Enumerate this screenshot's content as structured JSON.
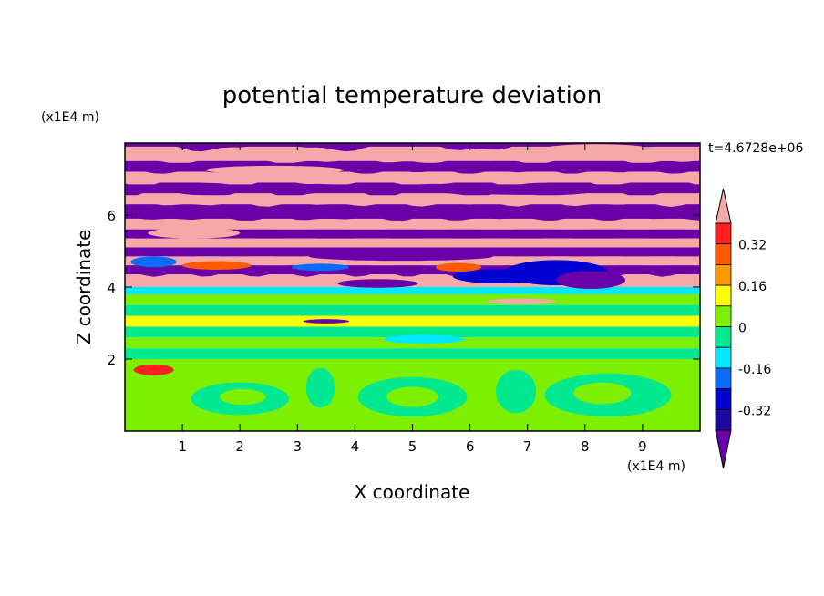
{
  "chart_data": {
    "type": "heatmap",
    "title": "potential temperature deviation",
    "xlabel": "X coordinate",
    "ylabel": "Z coordinate",
    "x_unit": "(x1E4 m)",
    "y_unit": "(x1E4 m)",
    "time_label": "t=4.6728e+06",
    "xlim": [
      0,
      10
    ],
    "ylim": [
      0,
      8
    ],
    "xticks": [
      1,
      2,
      3,
      4,
      5,
      6,
      7,
      8,
      9
    ],
    "yticks": [
      2,
      4,
      6
    ],
    "colorbar": {
      "levels": [
        -0.4,
        -0.32,
        -0.24,
        -0.16,
        -0.08,
        0,
        0.08,
        0.16,
        0.24,
        0.32,
        0.4
      ],
      "labels": [
        "0.32",
        "0.16",
        "0",
        "-0.16",
        "-0.32"
      ],
      "label_values": [
        0.32,
        0.16,
        0,
        -0.16,
        -0.32
      ],
      "colors": [
        "#6a00a8",
        "#1a0aa0",
        "#0000d0",
        "#0a6cff",
        "#00e8ff",
        "#00e890",
        "#7cf000",
        "#ffff00",
        "#ff9800",
        "#ff5a00",
        "#ff2020",
        "#f5a8a8"
      ],
      "range": [
        -0.48,
        0.48
      ]
    },
    "bands": [
      {
        "y0": 7.9,
        "y1": 8.0,
        "value": -0.45
      },
      {
        "y0": 7.5,
        "y1": 7.9,
        "value": 0.45
      },
      {
        "y0": 7.2,
        "y1": 7.5,
        "value": -0.45
      },
      {
        "y0": 6.9,
        "y1": 7.2,
        "value": 0.45
      },
      {
        "y0": 6.6,
        "y1": 6.9,
        "value": -0.45
      },
      {
        "y0": 6.3,
        "y1": 6.6,
        "value": 0.45
      },
      {
        "y0": 5.9,
        "y1": 6.3,
        "value": -0.45
      },
      {
        "y0": 5.6,
        "y1": 5.9,
        "value": 0.45
      },
      {
        "y0": 5.35,
        "y1": 5.6,
        "value": -0.45
      },
      {
        "y0": 5.1,
        "y1": 5.35,
        "value": 0.45
      },
      {
        "y0": 4.85,
        "y1": 5.1,
        "value": -0.45
      },
      {
        "y0": 4.6,
        "y1": 4.85,
        "value": 0.45
      },
      {
        "y0": 4.35,
        "y1": 4.6,
        "value": -0.45
      },
      {
        "y0": 4.0,
        "y1": 4.35,
        "value": 0.45
      },
      {
        "y0": 3.8,
        "y1": 4.0,
        "value": -0.12
      },
      {
        "y0": 3.5,
        "y1": 3.8,
        "value": 0.06
      },
      {
        "y0": 3.2,
        "y1": 3.5,
        "value": -0.02
      },
      {
        "y0": 2.9,
        "y1": 3.2,
        "value": 0.1
      },
      {
        "y0": 2.6,
        "y1": 2.9,
        "value": -0.02
      },
      {
        "y0": 2.3,
        "y1": 2.6,
        "value": 0.08
      },
      {
        "y0": 2.0,
        "y1": 2.3,
        "value": -0.02
      },
      {
        "y0": 0.0,
        "y1": 2.0,
        "value": 0.05
      }
    ],
    "blobs": [
      {
        "cx": 8.2,
        "cy": 7.85,
        "rx": 0.9,
        "ry": 0.12,
        "value": 0.45
      },
      {
        "cx": 2.6,
        "cy": 7.25,
        "rx": 1.2,
        "ry": 0.12,
        "value": 0.45
      },
      {
        "cx": 7.0,
        "cy": 6.7,
        "rx": 1.4,
        "ry": 0.14,
        "value": -0.45
      },
      {
        "cx": 1.2,
        "cy": 5.5,
        "rx": 0.8,
        "ry": 0.15,
        "value": 0.45
      },
      {
        "cx": 4.8,
        "cy": 4.85,
        "rx": 1.6,
        "ry": 0.12,
        "value": -0.45
      },
      {
        "cx": 7.5,
        "cy": 4.4,
        "rx": 0.9,
        "ry": 0.35,
        "value": -0.3
      },
      {
        "cx": 8.1,
        "cy": 4.2,
        "rx": 0.6,
        "ry": 0.25,
        "value": -0.45
      },
      {
        "cx": 6.5,
        "cy": 4.3,
        "rx": 0.8,
        "ry": 0.2,
        "value": -0.25
      },
      {
        "cx": 5.8,
        "cy": 4.55,
        "rx": 0.4,
        "ry": 0.12,
        "value": 0.3
      },
      {
        "cx": 3.4,
        "cy": 4.55,
        "rx": 0.5,
        "ry": 0.1,
        "value": -0.2
      },
      {
        "cx": 1.6,
        "cy": 4.6,
        "rx": 0.6,
        "ry": 0.12,
        "value": 0.3
      },
      {
        "cx": 0.5,
        "cy": 4.7,
        "rx": 0.4,
        "ry": 0.15,
        "value": -0.2
      },
      {
        "cx": 4.4,
        "cy": 4.1,
        "rx": 0.7,
        "ry": 0.12,
        "value": -0.45
      },
      {
        "cx": 6.9,
        "cy": 3.6,
        "rx": 0.6,
        "ry": 0.08,
        "value": 0.45
      },
      {
        "cx": 3.5,
        "cy": 3.05,
        "rx": 0.4,
        "ry": 0.06,
        "value": -0.4
      },
      {
        "cx": 5.2,
        "cy": 2.55,
        "rx": 0.7,
        "ry": 0.12,
        "value": -0.1
      },
      {
        "cx": 0.5,
        "cy": 1.7,
        "rx": 0.35,
        "ry": 0.15,
        "value": 0.4
      },
      {
        "cx": 2.0,
        "cy": 0.9,
        "rx": 0.85,
        "ry": 0.45,
        "value": -0.05
      },
      {
        "cx": 2.05,
        "cy": 0.95,
        "rx": 0.4,
        "ry": 0.22,
        "value": 0.08
      },
      {
        "cx": 5.0,
        "cy": 0.95,
        "rx": 0.95,
        "ry": 0.55,
        "value": -0.05
      },
      {
        "cx": 5.0,
        "cy": 0.95,
        "rx": 0.45,
        "ry": 0.28,
        "value": 0.08
      },
      {
        "cx": 8.4,
        "cy": 1.0,
        "rx": 1.1,
        "ry": 0.6,
        "value": -0.05
      },
      {
        "cx": 8.3,
        "cy": 1.05,
        "rx": 0.5,
        "ry": 0.3,
        "value": 0.08
      },
      {
        "cx": 3.4,
        "cy": 1.2,
        "rx": 0.25,
        "ry": 0.55,
        "value": -0.05
      },
      {
        "cx": 6.8,
        "cy": 1.1,
        "rx": 0.35,
        "ry": 0.6,
        "value": -0.05
      },
      {
        "cx": 6.3,
        "cy": 0.2,
        "rx": 0.6,
        "ry": 0.2,
        "value": 0.08
      }
    ]
  }
}
